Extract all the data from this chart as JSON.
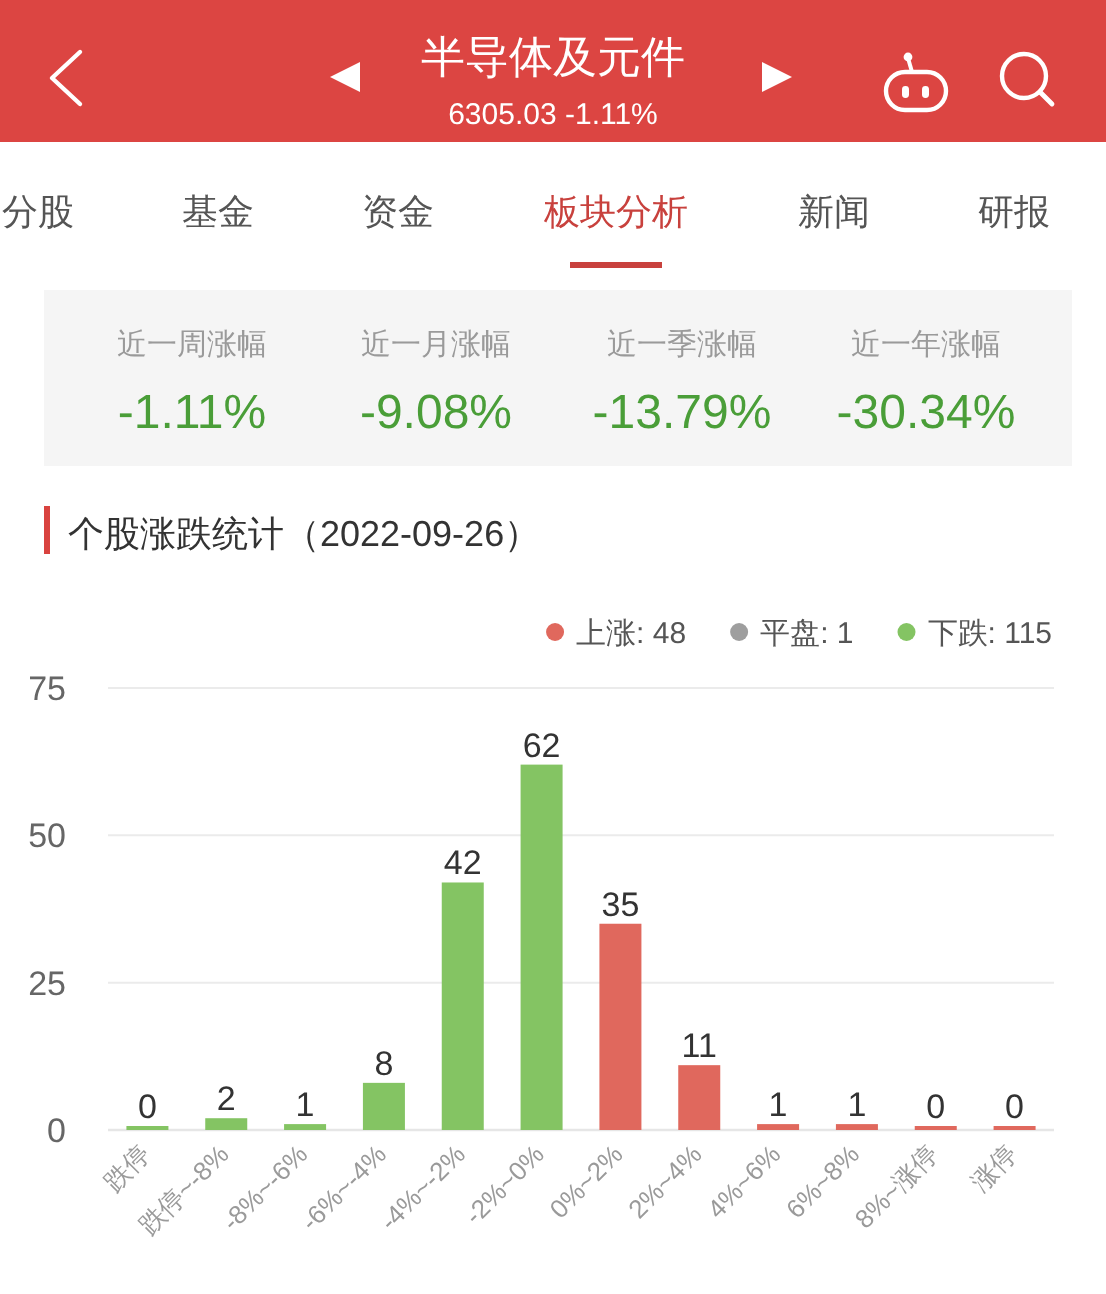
{
  "chart_data": [
    {
      "type": "other",
      "title": "半导体及元件",
      "subtitle": "6305.03 -1.11%"
    },
    {
      "type": "other",
      "annotations": [
        "分股",
        "基金",
        "资金",
        "板块分析",
        "新闻",
        "研报"
      ]
    },
    {
      "type": "other",
      "annotations": [
        "近一周涨幅",
        "-1.11%",
        "近一月涨幅",
        "-9.08%",
        "近一季涨幅",
        "-13.79%",
        "近一年涨幅",
        "-30.34%"
      ]
    },
    {
      "type": "bar",
      "title": "个股涨跌统计（2022-09-26）",
      "categories": [
        "跌停",
        "跌停~-8%",
        "-8%~-6%",
        "-6%~-4%",
        "-4%~-2%",
        "-2%~0%",
        "0%~2%",
        "2%~4%",
        "4%~6%",
        "6%~8%",
        "8%~涨停",
        "涨停"
      ],
      "series": [
        {
          "name": "上涨: 48",
          "color": "#e0685d",
          "values": [
            null,
            null,
            null,
            null,
            null,
            null,
            35,
            11,
            1,
            1,
            0,
            0
          ]
        },
        {
          "name": "平盘: 1",
          "color": "#9e9e9e",
          "values": [
            null,
            null,
            null,
            null,
            null,
            null,
            null,
            null,
            null,
            null,
            null,
            null
          ]
        },
        {
          "name": "下跌: 115",
          "color": "#84c463",
          "values": [
            0,
            2,
            1,
            8,
            42,
            62,
            null,
            null,
            null,
            null,
            null,
            null
          ]
        }
      ],
      "stacked": true,
      "ylim": [
        0,
        75
      ],
      "yticks": [
        0,
        25,
        50,
        75
      ],
      "grid": "y",
      "legend": "top right",
      "data_labels": true
    }
  ]
}
